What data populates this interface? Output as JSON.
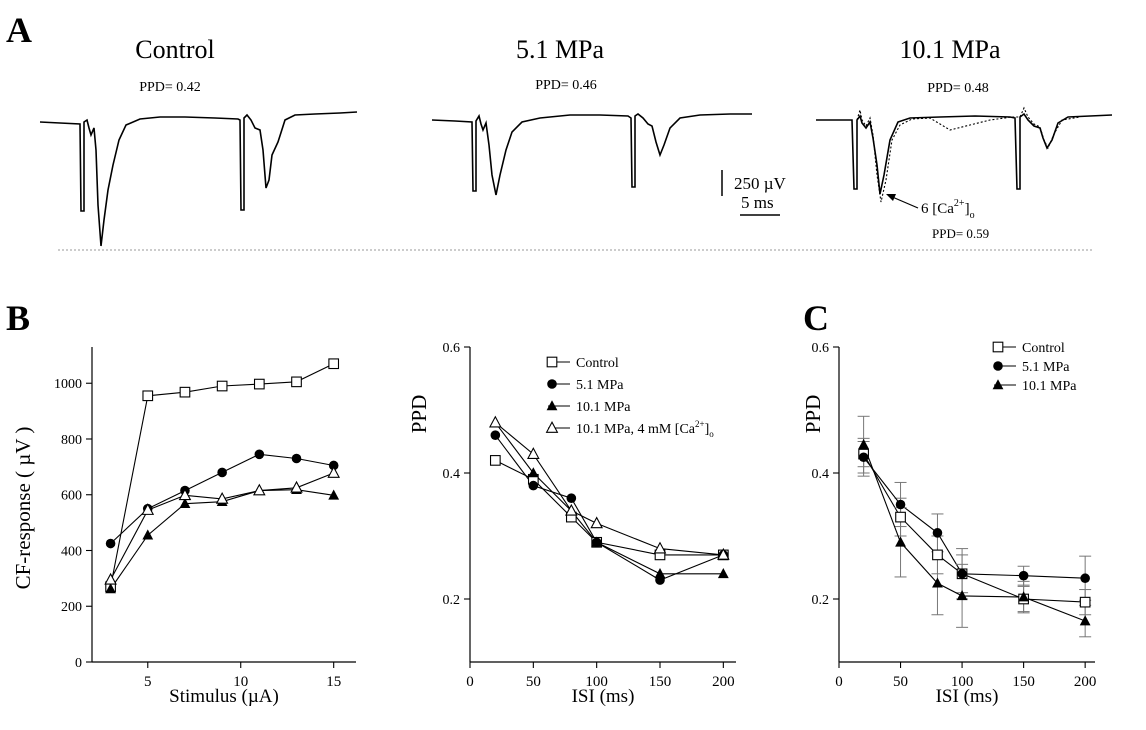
{
  "panel_a": {
    "letter": "A",
    "traces": [
      {
        "title": "Control",
        "ppd": "PPD= 0.42"
      },
      {
        "title": "5.1 MPa",
        "ppd": "PPD= 0.46"
      },
      {
        "title": "10.1 MPa",
        "ppd": "PPD= 0.48"
      }
    ],
    "scale_voltage": "250 µV",
    "scale_time": "5 ms",
    "ca_annotation_base": "6 [Ca",
    "ca_annotation_sup": "2+",
    "ca_annotation_end": "]",
    "ca_annotation_sub": "o",
    "ca_ppd": "PPD= 0.59"
  },
  "panel_b_letter": "B",
  "panel_c_letter": "C",
  "chart_data": [
    {
      "type": "line",
      "xlabel": "Stimulus (µA)",
      "ylabel": "CF-response ( µV )",
      "xlim": [
        2,
        16.2
      ],
      "ylim": [
        0,
        1130
      ],
      "xticks": [
        5,
        10,
        15
      ],
      "yticks": [
        0,
        200,
        400,
        600,
        800,
        1000
      ],
      "series": [
        {
          "marker": "square-open",
          "x": [
            3,
            5,
            7,
            9,
            11,
            13,
            15
          ],
          "y": [
            270,
            955,
            968,
            990,
            997,
            1005,
            1070
          ]
        },
        {
          "marker": "circle-filled",
          "x": [
            3,
            5,
            7,
            9,
            11,
            13,
            15
          ],
          "y": [
            425,
            550,
            615,
            680,
            745,
            730,
            705
          ]
        },
        {
          "marker": "triangle-filled",
          "x": [
            3,
            5,
            7,
            9,
            11,
            13,
            15
          ],
          "y": [
            262,
            455,
            568,
            575,
            615,
            618,
            598
          ]
        },
        {
          "marker": "triangle-open",
          "x": [
            3,
            5,
            7,
            9,
            11,
            13,
            15
          ],
          "y": [
            295,
            545,
            598,
            585,
            615,
            625,
            678
          ]
        }
      ]
    },
    {
      "type": "line",
      "xlabel": "ISI (ms)",
      "ylabel": "PPD",
      "xlim": [
        0,
        210
      ],
      "ylim": [
        0.1,
        0.6
      ],
      "xticks": [
        0,
        50,
        100,
        150,
        200
      ],
      "yticks": [
        0.2,
        0.4,
        0.6
      ],
      "legend": {
        "placement": "top-right",
        "labels": [
          "Control",
          "5.1 MPa",
          "10.1 MPa",
          "10.1 MPa, 4 mM [Ca"
        ],
        "ca_sup": "2+",
        "ca_end": "]",
        "ca_sub": "o"
      },
      "series": [
        {
          "name": "Control",
          "marker": "square-open",
          "x": [
            20,
            50,
            80,
            100,
            150,
            200
          ],
          "y": [
            0.42,
            0.39,
            0.33,
            0.29,
            0.27,
            0.27
          ]
        },
        {
          "name": "5.1 MPa",
          "marker": "circle-filled",
          "x": [
            20,
            50,
            80,
            100,
            150,
            200
          ],
          "y": [
            0.46,
            0.38,
            0.36,
            0.29,
            0.23,
            0.27
          ]
        },
        {
          "name": "10.1 MPa",
          "marker": "triangle-filled",
          "x": [
            20,
            50,
            80,
            100,
            150,
            200
          ],
          "y": [
            0.48,
            0.4,
            0.34,
            0.29,
            0.24,
            0.24
          ]
        },
        {
          "name": "10.1 MPa, 4 mM [Ca2+]o",
          "marker": "triangle-open",
          "x": [
            20,
            50,
            80,
            100,
            150,
            200
          ],
          "y": [
            0.48,
            0.43,
            0.34,
            0.32,
            0.28,
            0.27
          ]
        }
      ]
    },
    {
      "type": "line",
      "xlabel": "ISI (ms)",
      "ylabel": "PPD",
      "xlim": [
        0,
        208
      ],
      "ylim": [
        0.1,
        0.6
      ],
      "xticks": [
        0,
        50,
        100,
        150,
        200
      ],
      "yticks": [
        0.2,
        0.4,
        0.6
      ],
      "legend": {
        "placement": "top-right",
        "labels": [
          "Control",
          "5.1 MPa",
          "10.1 MPa"
        ]
      },
      "series": [
        {
          "name": "Control",
          "marker": "square-open",
          "x": [
            20,
            50,
            80,
            100,
            150,
            200
          ],
          "y": [
            0.43,
            0.33,
            0.27,
            0.24,
            0.2,
            0.195
          ],
          "err": [
            0.02,
            0.03,
            0.03,
            0.03,
            0.02,
            0.02
          ]
        },
        {
          "name": "5.1 MPa",
          "marker": "circle-filled",
          "x": [
            20,
            50,
            80,
            100,
            150,
            200
          ],
          "y": [
            0.425,
            0.35,
            0.305,
            0.24,
            0.237,
            0.233
          ],
          "err": [
            0.03,
            0.035,
            0.03,
            0.04,
            0.015,
            0.035
          ]
        },
        {
          "name": "10.1 MPa",
          "marker": "triangle-filled",
          "x": [
            20,
            50,
            80,
            100,
            150,
            200
          ],
          "y": [
            0.445,
            0.29,
            0.225,
            0.205,
            0.203,
            0.165
          ],
          "err": [
            0.045,
            0.055,
            0.05,
            0.05,
            0.025,
            0.025
          ]
        }
      ]
    }
  ]
}
